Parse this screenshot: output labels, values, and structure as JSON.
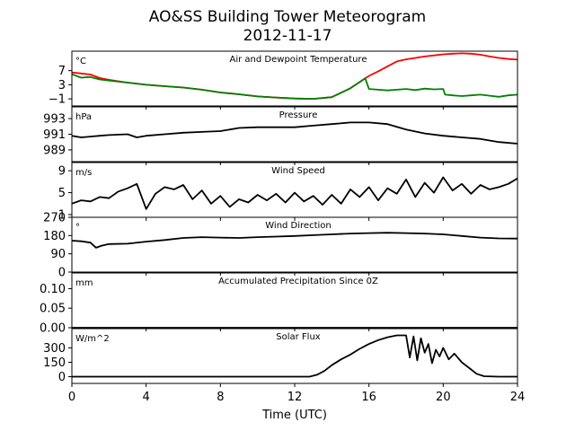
{
  "figure": {
    "title": "AO&SS Building Tower Meteorogram",
    "subtitle": "2012-11-17",
    "xlabel": "Time (UTC)"
  },
  "colors": {
    "temperature": "#ff0000",
    "dewpoint": "#008000",
    "line": "#000000"
  },
  "chart_data": [
    {
      "type": "line",
      "name": "air-dewpoint",
      "title": "Air and Dewpoint Temperature",
      "unit": "°C",
      "xlim": [
        0,
        24
      ],
      "ylim": [
        -3,
        12.5
      ],
      "yticks": [
        -1,
        3,
        7
      ],
      "ytick_labels": [
        "−1",
        "3",
        "7"
      ],
      "series": [
        {
          "name": "",
          "color": "#ff0000",
          "x": [
            0,
            0.5,
            1,
            1.5,
            2,
            3,
            4,
            5,
            6,
            7,
            8,
            9,
            10,
            11,
            12,
            13,
            14,
            15,
            15.8,
            16,
            16.5,
            17,
            17.5,
            18,
            18.5,
            19,
            19.5,
            20,
            20.5,
            21,
            21.5,
            22,
            22.5,
            23,
            23.5,
            24
          ],
          "y": [
            6.5,
            6.2,
            5.9,
            4.9,
            4.4,
            3.6,
            3.0,
            2.6,
            2.2,
            1.6,
            0.8,
            0.3,
            -0.3,
            -0.6,
            -0.9,
            -1.0,
            -0.5,
            2.0,
            4.8,
            5.5,
            6.8,
            8.2,
            9.6,
            10.2,
            10.6,
            11.0,
            11.3,
            11.6,
            11.8,
            11.9,
            11.8,
            11.5,
            11.0,
            10.6,
            10.3,
            10.1
          ]
        },
        {
          "name": "",
          "color": "#008000",
          "x": [
            0,
            0.5,
            1,
            1.5,
            2,
            3,
            4,
            5,
            6,
            7,
            8,
            9,
            10,
            11,
            12,
            13,
            14,
            15,
            15.8,
            16,
            16.5,
            17,
            17.5,
            18,
            18.5,
            19,
            19.5,
            20,
            20.1,
            20.5,
            21,
            21.5,
            22,
            22.5,
            23,
            23.5,
            24
          ],
          "y": [
            6.0,
            5.0,
            5.2,
            4.5,
            4.2,
            3.6,
            3.0,
            2.6,
            2.2,
            1.6,
            0.8,
            0.3,
            -0.3,
            -0.6,
            -0.9,
            -1.0,
            -0.5,
            2.0,
            4.8,
            1.8,
            1.6,
            1.4,
            1.6,
            1.8,
            1.5,
            1.9,
            1.7,
            1.8,
            0.2,
            0.0,
            -0.2,
            0.0,
            0.2,
            -0.1,
            -0.4,
            0.0,
            0.2
          ]
        }
      ]
    },
    {
      "type": "line",
      "name": "pressure",
      "title": "Pressure",
      "unit": "hPa",
      "xlim": [
        0,
        24
      ],
      "ylim": [
        987.5,
        994.5
      ],
      "yticks": [
        989,
        991,
        993
      ],
      "ytick_labels": [
        "989",
        "991",
        "993"
      ],
      "series": [
        {
          "name": "",
          "color": "#000000",
          "x": [
            0,
            0.5,
            1,
            1.5,
            2,
            3,
            3.5,
            4,
            5,
            6,
            7,
            8,
            9,
            10,
            11,
            12,
            13,
            14,
            15,
            16,
            17,
            18,
            19,
            20,
            21,
            22,
            23,
            24
          ],
          "y": [
            990.8,
            990.6,
            990.7,
            990.8,
            990.9,
            991.0,
            990.6,
            990.8,
            991.0,
            991.2,
            991.3,
            991.4,
            991.8,
            991.9,
            991.9,
            991.9,
            992.1,
            992.3,
            992.5,
            992.5,
            992.3,
            991.6,
            991.1,
            990.8,
            990.6,
            990.4,
            990.0,
            989.8
          ]
        }
      ]
    },
    {
      "type": "line",
      "name": "wind-speed",
      "title": "Wind Speed",
      "unit": "m/s",
      "xlim": [
        0,
        24
      ],
      "ylim": [
        0.5,
        10.5
      ],
      "yticks": [
        1,
        5,
        9
      ],
      "ytick_labels": [
        "1",
        "5",
        "9"
      ],
      "series": [
        {
          "name": "",
          "color": "#000000",
          "x": [
            0,
            0.5,
            1,
            1.5,
            2,
            2.5,
            3,
            3.5,
            4,
            4.5,
            5,
            5.5,
            6,
            6.5,
            7,
            7.5,
            8,
            8.5,
            9,
            9.5,
            10,
            10.5,
            11,
            11.5,
            12,
            12.5,
            13,
            13.5,
            14,
            14.5,
            15,
            15.5,
            16,
            16.5,
            17,
            17.5,
            18,
            18.5,
            19,
            19.5,
            20,
            20.5,
            21,
            21.5,
            22,
            22.5,
            23,
            23.5,
            24
          ],
          "y": [
            3.0,
            3.6,
            3.4,
            4.2,
            4.0,
            5.2,
            5.8,
            6.6,
            2.0,
            4.8,
            6.0,
            5.6,
            6.4,
            3.8,
            5.4,
            3.0,
            4.4,
            2.4,
            3.8,
            3.2,
            4.6,
            3.6,
            4.8,
            3.2,
            5.0,
            3.4,
            4.4,
            2.8,
            4.6,
            3.0,
            5.6,
            4.2,
            6.0,
            3.6,
            5.8,
            4.8,
            7.4,
            4.2,
            6.8,
            5.0,
            7.8,
            5.4,
            6.6,
            4.8,
            6.4,
            5.6,
            6.0,
            6.6,
            7.6
          ]
        }
      ]
    },
    {
      "type": "line",
      "name": "wind-direction",
      "title": "Wind Direction",
      "unit": "°",
      "xlim": [
        0,
        24
      ],
      "ylim": [
        0,
        270
      ],
      "yticks": [
        0,
        90,
        180,
        270
      ],
      "ytick_labels": [
        "0",
        "90",
        "180",
        "270"
      ],
      "series": [
        {
          "name": "",
          "color": "#000000",
          "x": [
            0,
            0.5,
            1,
            1.3,
            1.6,
            2,
            3,
            4,
            5,
            6,
            7,
            8,
            9,
            10,
            11,
            12,
            13,
            14,
            15,
            16,
            17,
            18,
            19,
            20,
            21,
            22,
            23,
            24
          ],
          "y": [
            155,
            152,
            145,
            120,
            130,
            138,
            140,
            150,
            158,
            168,
            172,
            170,
            168,
            172,
            175,
            178,
            182,
            186,
            190,
            192,
            194,
            192,
            190,
            186,
            178,
            170,
            166,
            165
          ]
        }
      ]
    },
    {
      "type": "line",
      "name": "precipitation",
      "title": "Accumulated Precipitation Since 0Z",
      "unit": "mm",
      "xlim": [
        0,
        24
      ],
      "ylim": [
        0,
        0.14
      ],
      "yticks": [
        0.0,
        0.05,
        0.1
      ],
      "ytick_labels": [
        "0.00",
        "0.05",
        "0.10"
      ],
      "series": [
        {
          "name": "",
          "color": "#000000",
          "x": [
            0,
            24
          ],
          "y": [
            0.0,
            0.0
          ]
        }
      ]
    },
    {
      "type": "line",
      "name": "solar-flux",
      "title": "Solar Flux",
      "unit": "W/m^2",
      "xlim": [
        0,
        24
      ],
      "ylim": [
        -70,
        500
      ],
      "yticks": [
        0,
        150,
        300
      ],
      "ytick_labels": [
        "0",
        "150",
        "300"
      ],
      "series": [
        {
          "name": "",
          "color": "#000000",
          "x": [
            0,
            12.8,
            13.2,
            13.6,
            14,
            14.5,
            15,
            15.5,
            16,
            16.5,
            17,
            17.5,
            18,
            18.2,
            18.4,
            18.6,
            18.8,
            19,
            19.2,
            19.4,
            19.6,
            19.8,
            20,
            20.3,
            20.6,
            21,
            21.4,
            21.8,
            22.2,
            23,
            24
          ],
          "y": [
            0,
            0,
            20,
            60,
            120,
            180,
            230,
            290,
            340,
            380,
            410,
            430,
            430,
            200,
            420,
            170,
            400,
            250,
            340,
            140,
            280,
            210,
            300,
            180,
            240,
            150,
            90,
            30,
            5,
            0,
            0
          ]
        }
      ]
    }
  ],
  "xaxis": {
    "ticks": [
      0,
      4,
      8,
      12,
      16,
      20,
      24
    ],
    "tick_labels": [
      "0",
      "4",
      "8",
      "12",
      "16",
      "20",
      "24"
    ]
  }
}
